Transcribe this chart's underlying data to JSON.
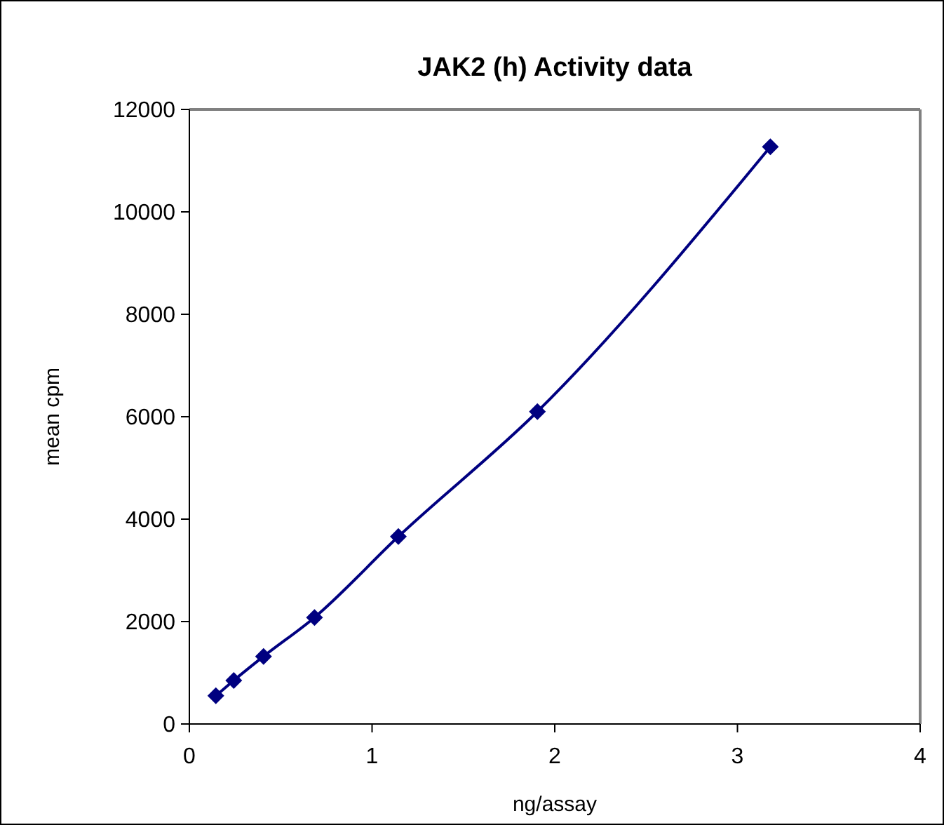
{
  "chart_data": {
    "type": "line",
    "title": "JAK2 (h) Activity data",
    "xlabel": "ng/assay",
    "ylabel": "mean cpm",
    "x": [
      0.145,
      0.243,
      0.406,
      0.685,
      1.144,
      1.905,
      3.18
    ],
    "series": [
      {
        "color": "#000080",
        "values": [
          550,
          850,
          1320,
          2080,
          3660,
          6100,
          11270
        ]
      }
    ],
    "xlim": [
      0,
      4
    ],
    "xticks": [
      0,
      1,
      2,
      3,
      4
    ],
    "ylim": [
      0,
      12000
    ],
    "yticks": [
      0,
      2000,
      4000,
      6000,
      8000,
      10000,
      12000
    ],
    "marker": "diamond",
    "line_style": "solid",
    "grid": false
  }
}
